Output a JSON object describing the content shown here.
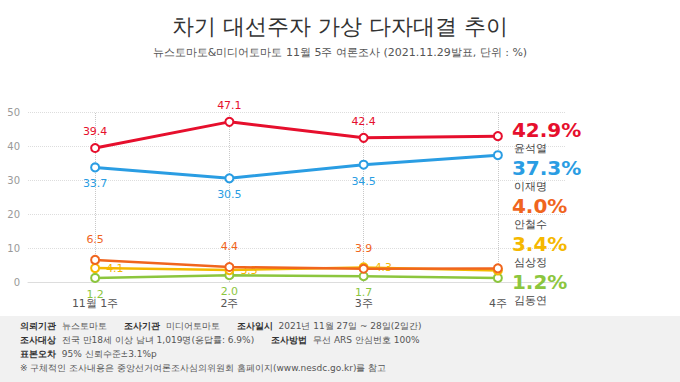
{
  "chart_data": {
    "type": "line",
    "title": "차기 대선주자 가상 다자대결 추이",
    "subtitle": "뉴스토마토&미디어토마토 11월 5주 여론조사 (2021.11.29발표, 단위 : %)",
    "categories": [
      "11월 1주",
      "2주",
      "3주",
      "4주"
    ],
    "series": [
      {
        "name": "윤석열",
        "color": "#e60f2d",
        "values": [
          39.4,
          47.1,
          42.4,
          42.9
        ],
        "value_labels": [
          "39.4",
          "47.1",
          "42.4",
          "42.9%"
        ]
      },
      {
        "name": "이재명",
        "color": "#2a9de3",
        "values": [
          33.7,
          30.5,
          34.5,
          37.3
        ],
        "value_labels": [
          "33.7",
          "30.5",
          "34.5",
          "37.3%"
        ]
      },
      {
        "name": "안철수",
        "color": "#f0651e",
        "values": [
          6.5,
          4.4,
          3.9,
          4.0
        ],
        "value_labels": [
          "6.5",
          "4.4",
          "3.9",
          "4.0%"
        ]
      },
      {
        "name": "심상정",
        "color": "#f5b800",
        "values": [
          4.1,
          3.5,
          4.3,
          3.4
        ],
        "value_labels": [
          "4.1",
          "3.5",
          "4.3",
          "3.4%"
        ]
      },
      {
        "name": "김동연",
        "color": "#8cc63e",
        "values": [
          1.2,
          2.0,
          1.7,
          1.2
        ],
        "value_labels": [
          "1.2",
          "2.0",
          "1.7",
          "1.2%"
        ]
      }
    ],
    "ylim": [
      0,
      50
    ],
    "yticks": [
      0,
      10,
      20,
      30,
      40,
      50
    ],
    "grid": true,
    "marker": "circle",
    "data_labels": true,
    "annotations": [
      {
        "label": "의뢰기관",
        "text": "뉴스토마토"
      },
      {
        "label": "조사기관",
        "text": "미디어토마토"
      },
      {
        "label": "조사일시",
        "text": "2021년 11월 27일 ~ 28일(2일간)"
      },
      {
        "label": "조사대상",
        "text": "전국 만18세 이상 남녀 1,019명(응답률: 6.9%)"
      },
      {
        "label": "조사방법",
        "text": "무선 ARS 안심번호 100%"
      },
      {
        "label": "표본오차",
        "text": "95% 신뢰수준±3.1%p"
      },
      {
        "text": "※ 구체적인 조사내용은 중앙선거여론조사심의위원회 홈페이지(www.nesdc.go.kr)를 참고"
      }
    ]
  }
}
